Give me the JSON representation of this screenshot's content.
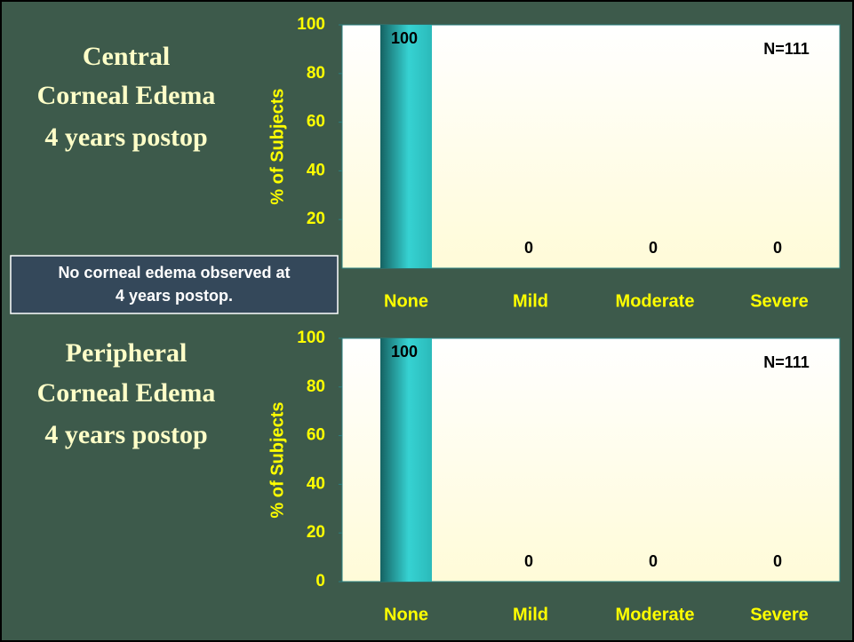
{
  "note": [
    "No corneal edema observed at",
    "4 years postop."
  ],
  "chart_data": [
    {
      "type": "bar",
      "title": [
        "Central",
        "Corneal Edema",
        "4 years postop"
      ],
      "ylabel": "% of Subjects",
      "categories": [
        "None",
        "Mild",
        "Moderate",
        "Severe"
      ],
      "values": [
        100,
        0,
        0,
        0
      ],
      "color": "#2fc4c4",
      "ylim": [
        0,
        100
      ],
      "yticks": [
        20,
        40,
        60,
        80,
        100
      ],
      "annotation": "N=111"
    },
    {
      "type": "bar",
      "title": [
        "Peripheral",
        "Corneal Edema",
        "4 years postop"
      ],
      "ylabel": "% of Subjects",
      "categories": [
        "None",
        "Mild",
        "Moderate",
        "Severe"
      ],
      "values": [
        100,
        0,
        0,
        0
      ],
      "color": "#2fc4c4",
      "ylim": [
        0,
        100
      ],
      "yticks": [
        0,
        20,
        40,
        60,
        80,
        100
      ],
      "annotation": "N=111"
    }
  ]
}
